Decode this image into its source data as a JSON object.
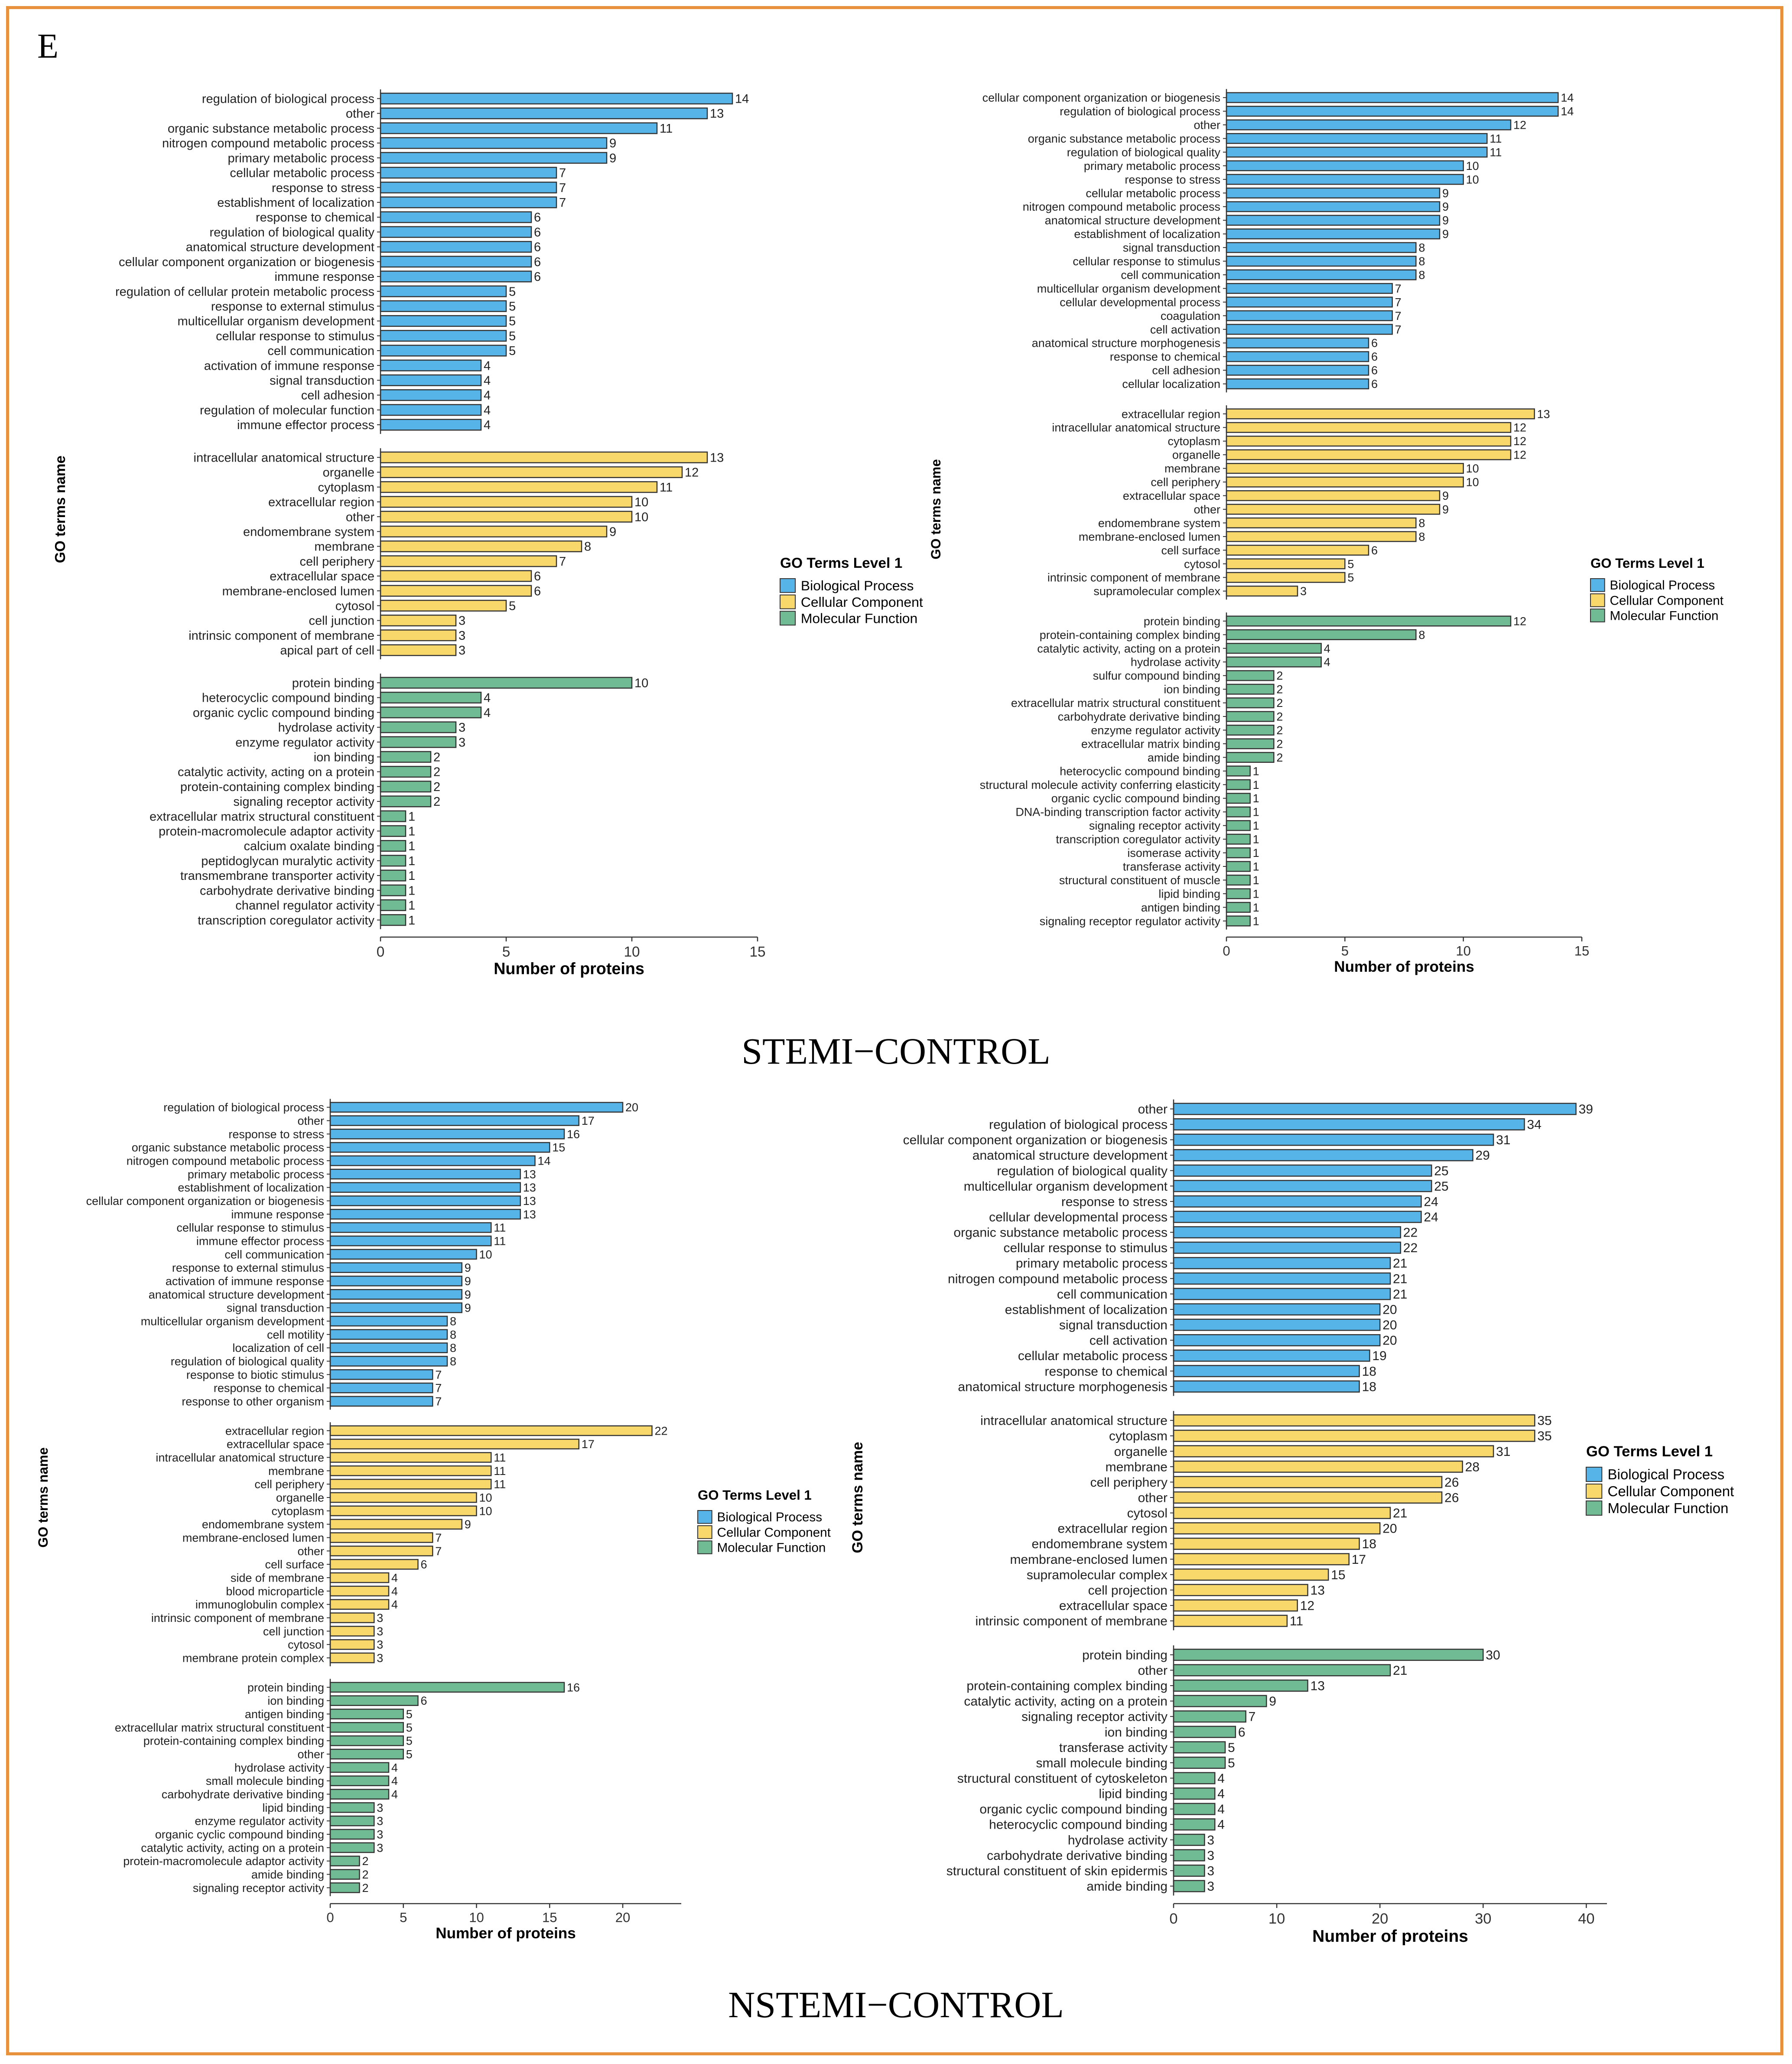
{
  "panel_letter": "E",
  "section_titles": [
    "STEMI−CONTROL",
    "NSTEMI−CONTROL"
  ],
  "colors": {
    "Biological Process": "#56b4e9",
    "Cellular Component": "#f9d86b",
    "Molecular Function": "#71bb94",
    "frame": "#e8913c"
  },
  "chart_data": [
    {
      "type": "bar",
      "orientation": "horizontal",
      "section": "STEMI−CONTROL",
      "xlabel": "Number of proteins",
      "ylabel": "GO terms name",
      "xlim": [
        0,
        15
      ],
      "xticks": [
        0,
        5,
        10,
        15
      ],
      "legend": {
        "title": "GO Terms Level 1",
        "entries": [
          "Biological Process",
          "Cellular Component",
          "Molecular Function"
        ],
        "placement": "right"
      },
      "groups": [
        {
          "name": "Biological Process",
          "labels": [
            "regulation of biological process",
            "other",
            "organic substance metabolic process",
            "nitrogen compound metabolic process",
            "primary metabolic process",
            "cellular metabolic process",
            "response to stress",
            "establishment of localization",
            "response to chemical",
            "regulation of biological quality",
            "anatomical structure development",
            "cellular component organization or biogenesis",
            "immune response",
            "regulation of cellular protein metabolic process",
            "response to external stimulus",
            "multicellular organism development",
            "cellular response to stimulus",
            "cell communication",
            "activation of immune response",
            "signal transduction",
            "cell adhesion",
            "regulation of molecular function",
            "immune effector process"
          ],
          "values": [
            14,
            13,
            11,
            9,
            9,
            7,
            7,
            7,
            6,
            6,
            6,
            6,
            6,
            5,
            5,
            5,
            5,
            5,
            4,
            4,
            4,
            4,
            4
          ]
        },
        {
          "name": "Cellular Component",
          "labels": [
            "intracellular anatomical structure",
            "organelle",
            "cytoplasm",
            "extracellular region",
            "other",
            "endomembrane system",
            "membrane",
            "cell periphery",
            "extracellular space",
            "membrane-enclosed lumen",
            "cytosol",
            "cell junction",
            "intrinsic component of membrane",
            "apical part of cell"
          ],
          "values": [
            13,
            12,
            11,
            10,
            10,
            9,
            8,
            7,
            6,
            6,
            5,
            3,
            3,
            3
          ]
        },
        {
          "name": "Molecular Function",
          "labels": [
            "protein binding",
            "heterocyclic compound binding",
            "organic cyclic compound binding",
            "hydrolase activity",
            "enzyme regulator activity",
            "ion binding",
            "catalytic activity, acting on a protein",
            "protein-containing complex binding",
            "signaling receptor activity",
            "extracellular matrix structural constituent",
            "protein-macromolecule adaptor activity",
            "calcium oxalate binding",
            "peptidoglycan muralytic activity",
            "transmembrane transporter activity",
            "carbohydrate derivative binding",
            "channel regulator activity",
            "transcription coregulator activity"
          ],
          "values": [
            10,
            4,
            4,
            3,
            3,
            2,
            2,
            2,
            2,
            1,
            1,
            1,
            1,
            1,
            1,
            1,
            1
          ]
        }
      ]
    },
    {
      "type": "bar",
      "orientation": "horizontal",
      "section": "STEMI−CONTROL",
      "xlabel": "Number of proteins",
      "ylabel": "GO terms name",
      "xlim": [
        0,
        15
      ],
      "xticks": [
        0,
        5,
        10,
        15
      ],
      "legend": {
        "title": "GO Terms Level 1",
        "entries": [
          "Biological Process",
          "Cellular Component",
          "Molecular Function"
        ],
        "placement": "right"
      },
      "groups": [
        {
          "name": "Biological Process",
          "labels": [
            "cellular component organization or biogenesis",
            "regulation of biological process",
            "other",
            "organic substance metabolic process",
            "regulation of biological quality",
            "primary metabolic process",
            "response to stress",
            "cellular metabolic process",
            "nitrogen compound metabolic process",
            "anatomical structure development",
            "establishment of localization",
            "signal transduction",
            "cellular response to stimulus",
            "cell communication",
            "multicellular organism development",
            "cellular developmental process",
            "coagulation",
            "cell activation",
            "anatomical structure morphogenesis",
            "response to chemical",
            "cell adhesion",
            "cellular localization"
          ],
          "values": [
            14,
            14,
            12,
            11,
            11,
            10,
            10,
            9,
            9,
            9,
            9,
            8,
            8,
            8,
            7,
            7,
            7,
            7,
            6,
            6,
            6,
            6
          ]
        },
        {
          "name": "Cellular Component",
          "labels": [
            "extracellular region",
            "intracellular anatomical structure",
            "cytoplasm",
            "organelle",
            "membrane",
            "cell periphery",
            "extracellular space",
            "other",
            "endomembrane system",
            "membrane-enclosed lumen",
            "cell surface",
            "cytosol",
            "intrinsic component of membrane",
            "supramolecular complex"
          ],
          "values": [
            13,
            12,
            12,
            12,
            10,
            10,
            9,
            9,
            8,
            8,
            6,
            5,
            5,
            3
          ]
        },
        {
          "name": "Molecular Function",
          "labels": [
            "protein binding",
            "protein-containing complex binding",
            "catalytic activity, acting on a protein",
            "hydrolase activity",
            "sulfur compound binding",
            "ion binding",
            "extracellular matrix structural constituent",
            "carbohydrate derivative binding",
            "enzyme regulator activity",
            "extracellular matrix binding",
            "amide binding",
            "heterocyclic compound binding",
            "structural molecule activity conferring elasticity",
            "organic cyclic compound binding",
            "DNA-binding transcription factor activity",
            "signaling receptor activity",
            "transcription coregulator activity",
            "isomerase activity",
            "transferase activity",
            "structural constituent of muscle",
            "lipid binding",
            "antigen binding",
            "signaling receptor regulator activity"
          ],
          "values": [
            12,
            8,
            4,
            4,
            2,
            2,
            2,
            2,
            2,
            2,
            2,
            1,
            1,
            1,
            1,
            1,
            1,
            1,
            1,
            1,
            1,
            1,
            1
          ]
        }
      ]
    },
    {
      "type": "bar",
      "orientation": "horizontal",
      "section": "NSTEMI−CONTROL",
      "xlabel": "Number of proteins",
      "ylabel": "GO terms name",
      "xlim": [
        0,
        24
      ],
      "xticks": [
        0,
        5,
        10,
        15,
        20
      ],
      "legend": {
        "title": "GO Terms Level 1",
        "entries": [
          "Biological Process",
          "Cellular Component",
          "Molecular Function"
        ],
        "placement": "right"
      },
      "groups": [
        {
          "name": "Biological Process",
          "labels": [
            "regulation of biological process",
            "other",
            "response to stress",
            "organic substance metabolic process",
            "nitrogen compound metabolic process",
            "primary metabolic process",
            "establishment of localization",
            "cellular component organization or biogenesis",
            "immune response",
            "cellular response to stimulus",
            "immune effector process",
            "cell communication",
            "response to external stimulus",
            "activation of immune response",
            "anatomical structure development",
            "signal transduction",
            "multicellular organism development",
            "cell motility",
            "localization of cell",
            "regulation of biological quality",
            "response to biotic stimulus",
            "response to chemical",
            "response to other organism"
          ],
          "values": [
            20,
            17,
            16,
            15,
            14,
            13,
            13,
            13,
            13,
            11,
            11,
            10,
            9,
            9,
            9,
            9,
            8,
            8,
            8,
            8,
            7,
            7,
            7
          ]
        },
        {
          "name": "Cellular Component",
          "labels": [
            "extracellular region",
            "extracellular space",
            "intracellular anatomical structure",
            "membrane",
            "cell periphery",
            "organelle",
            "cytoplasm",
            "endomembrane system",
            "membrane-enclosed lumen",
            "other",
            "cell surface",
            "side of membrane",
            "blood microparticle",
            "immunoglobulin complex",
            "intrinsic component of membrane",
            "cell junction",
            "cytosol",
            "membrane protein complex"
          ],
          "values": [
            22,
            17,
            11,
            11,
            11,
            10,
            10,
            9,
            7,
            7,
            6,
            4,
            4,
            4,
            3,
            3,
            3,
            3
          ]
        },
        {
          "name": "Molecular Function",
          "labels": [
            "protein binding",
            "ion binding",
            "antigen binding",
            "extracellular matrix structural constituent",
            "protein-containing complex binding",
            "other",
            "hydrolase activity",
            "small molecule binding",
            "carbohydrate derivative binding",
            "lipid binding",
            "enzyme regulator activity",
            "organic cyclic compound binding",
            "catalytic activity, acting on a protein",
            "protein-macromolecule adaptor activity",
            "amide binding",
            "signaling receptor activity"
          ],
          "values": [
            16,
            6,
            5,
            5,
            5,
            5,
            4,
            4,
            4,
            3,
            3,
            3,
            3,
            2,
            2,
            2
          ]
        }
      ]
    },
    {
      "type": "bar",
      "orientation": "horizontal",
      "section": "NSTEMI−CONTROL",
      "xlabel": "Number of proteins",
      "ylabel": "GO terms name",
      "xlim": [
        0,
        42
      ],
      "xticks": [
        0,
        10,
        20,
        30,
        40
      ],
      "legend": {
        "title": "GO Terms Level 1",
        "entries": [
          "Biological Process",
          "Cellular Component",
          "Molecular Function"
        ],
        "placement": "right"
      },
      "groups": [
        {
          "name": "Biological Process",
          "labels": [
            "other",
            "regulation of biological process",
            "cellular component organization or biogenesis",
            "anatomical structure development",
            "regulation of biological quality",
            "multicellular organism development",
            "response to stress",
            "cellular developmental process",
            "organic substance metabolic process",
            "cellular response to stimulus",
            "primary metabolic process",
            "nitrogen compound metabolic process",
            "cell communication",
            "establishment of localization",
            "signal transduction",
            "cell activation",
            "cellular metabolic process",
            "response to chemical",
            "anatomical structure morphogenesis"
          ],
          "values": [
            39,
            34,
            31,
            29,
            25,
            25,
            24,
            24,
            22,
            22,
            21,
            21,
            21,
            20,
            20,
            20,
            19,
            18,
            18
          ]
        },
        {
          "name": "Cellular Component",
          "labels": [
            "intracellular anatomical structure",
            "cytoplasm",
            "organelle",
            "membrane",
            "cell periphery",
            "other",
            "cytosol",
            "extracellular region",
            "endomembrane system",
            "membrane-enclosed lumen",
            "supramolecular complex",
            "cell projection",
            "extracellular space",
            "intrinsic component of membrane"
          ],
          "values": [
            35,
            35,
            31,
            28,
            26,
            26,
            21,
            20,
            18,
            17,
            15,
            13,
            12,
            11
          ]
        },
        {
          "name": "Molecular Function",
          "labels": [
            "protein binding",
            "other",
            "protein-containing complex binding",
            "catalytic activity, acting on a protein",
            "signaling receptor activity",
            "ion binding",
            "transferase activity",
            "small molecule binding",
            "structural constituent of cytoskeleton",
            "lipid binding",
            "organic cyclic compound binding",
            "heterocyclic compound binding",
            "hydrolase activity",
            "carbohydrate derivative binding",
            "structural constituent of skin epidermis",
            "amide binding"
          ],
          "values": [
            30,
            21,
            13,
            9,
            7,
            6,
            5,
            5,
            4,
            4,
            4,
            4,
            3,
            3,
            3,
            3
          ]
        }
      ]
    }
  ]
}
